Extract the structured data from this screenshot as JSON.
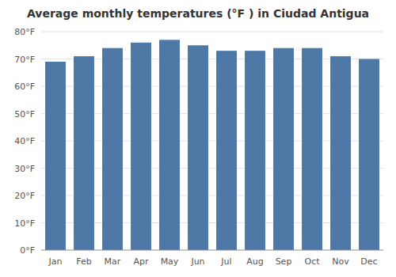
{
  "chart_data": {
    "type": "bar",
    "title": "Average monthly temperatures (°F ) in Ciudad Antigua",
    "categories": [
      "Jan",
      "Feb",
      "Mar",
      "Apr",
      "May",
      "Jun",
      "Jul",
      "Aug",
      "Sep",
      "Oct",
      "Nov",
      "Dec"
    ],
    "values": [
      69,
      71,
      74,
      76,
      77,
      75,
      73,
      73,
      74,
      74,
      71,
      70
    ],
    "ylim": [
      0,
      80
    ],
    "yticks": [
      {
        "value": 0,
        "label": "0°F"
      },
      {
        "value": 10,
        "label": "10°F"
      },
      {
        "value": 20,
        "label": "20°F"
      },
      {
        "value": 30,
        "label": "30°F"
      },
      {
        "value": 40,
        "label": "40°F"
      },
      {
        "value": 50,
        "label": "50°F"
      },
      {
        "value": 60,
        "label": "60°F"
      },
      {
        "value": 70,
        "label": "70°F"
      },
      {
        "value": 80,
        "label": "80°F"
      }
    ],
    "grid": true
  }
}
